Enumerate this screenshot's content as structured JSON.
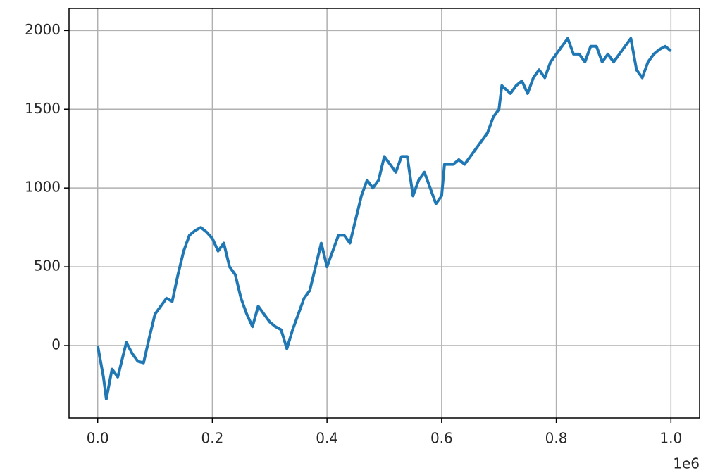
{
  "chart_data": {
    "type": "line",
    "x": [
      0,
      10000,
      15000,
      25000,
      35000,
      50000,
      60000,
      70000,
      80000,
      90000,
      100000,
      110000,
      120000,
      130000,
      140000,
      150000,
      160000,
      170000,
      180000,
      190000,
      200000,
      210000,
      220000,
      230000,
      240000,
      250000,
      260000,
      270000,
      280000,
      290000,
      300000,
      310000,
      320000,
      330000,
      340000,
      350000,
      360000,
      370000,
      380000,
      390000,
      400000,
      410000,
      420000,
      430000,
      440000,
      450000,
      460000,
      470000,
      480000,
      490000,
      500000,
      510000,
      520000,
      530000,
      540000,
      550000,
      560000,
      570000,
      580000,
      590000,
      600000,
      605000,
      620000,
      630000,
      640000,
      650000,
      660000,
      670000,
      680000,
      690000,
      700000,
      705000,
      720000,
      730000,
      740000,
      750000,
      760000,
      770000,
      780000,
      790000,
      800000,
      810000,
      820000,
      830000,
      840000,
      850000,
      860000,
      870000,
      880000,
      890000,
      900000,
      910000,
      920000,
      930000,
      940000,
      950000,
      960000,
      970000,
      980000,
      990000,
      1000000
    ],
    "series": [
      {
        "color": "#1f77b4",
        "values": [
          0,
          -200,
          -340,
          -150,
          -200,
          20,
          -50,
          -100,
          -110,
          50,
          200,
          250,
          300,
          280,
          450,
          600,
          700,
          730,
          750,
          720,
          680,
          600,
          650,
          500,
          450,
          300,
          200,
          120,
          250,
          200,
          150,
          120,
          100,
          -20,
          100,
          200,
          300,
          350,
          500,
          650,
          500,
          600,
          700,
          700,
          650,
          800,
          950,
          1050,
          1000,
          1050,
          1200,
          1150,
          1100,
          1200,
          1200,
          950,
          1050,
          1100,
          1000,
          900,
          950,
          1150,
          1150,
          1180,
          1150,
          1200,
          1250,
          1300,
          1350,
          1450,
          1500,
          1650,
          1600,
          1650,
          1680,
          1600,
          1700,
          1750,
          1700,
          1800,
          1850,
          1900,
          1950,
          1850,
          1850,
          1800,
          1900,
          1900,
          1800,
          1850,
          1800,
          1850,
          1900,
          1950,
          1750,
          1700,
          1800,
          1850,
          1880,
          1900,
          1870
        ]
      }
    ],
    "xlim": [
      -50000,
      1050000
    ],
    "ylim": [
      -460,
      2140
    ],
    "xticks": [
      {
        "value": 0,
        "label": "0.0"
      },
      {
        "value": 200000,
        "label": "0.2"
      },
      {
        "value": 400000,
        "label": "0.4"
      },
      {
        "value": 600000,
        "label": "0.6"
      },
      {
        "value": 800000,
        "label": "0.8"
      },
      {
        "value": 1000000,
        "label": "1.0"
      }
    ],
    "yticks": [
      0,
      500,
      1000,
      1500,
      2000
    ],
    "x_offset_label": "1e6",
    "grid": true
  }
}
